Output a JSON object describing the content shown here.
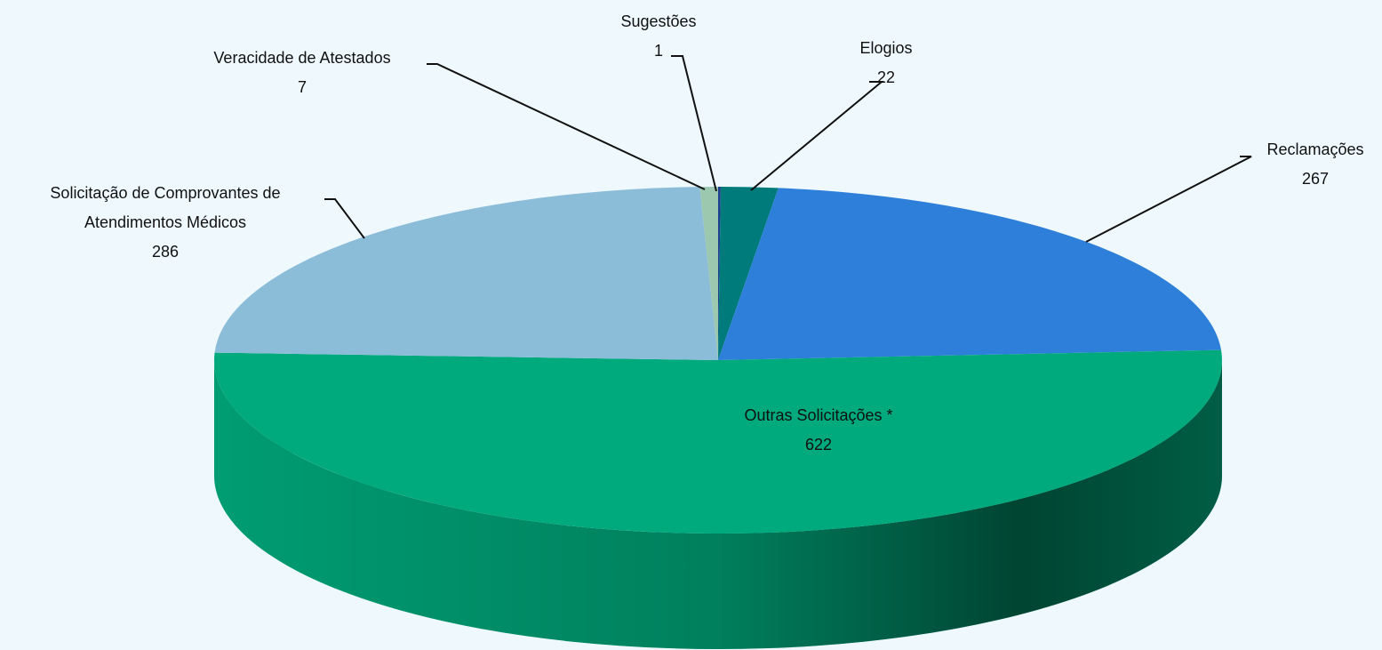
{
  "chart_data": {
    "type": "pie",
    "categories": [
      "Sugestões",
      "Elogios",
      "Reclamações",
      "Outras Solicitações *",
      "Solicitação de Comprovantes de Atendimentos Médicos",
      "Veracidade de Atestados"
    ],
    "values": [
      1,
      22,
      267,
      622,
      286,
      7
    ],
    "colors": [
      "#1f3f8f",
      "#007b7b",
      "#2e7fd9",
      "#00aa7c",
      "#8bbcd8",
      "#9cc8b0"
    ]
  }
}
